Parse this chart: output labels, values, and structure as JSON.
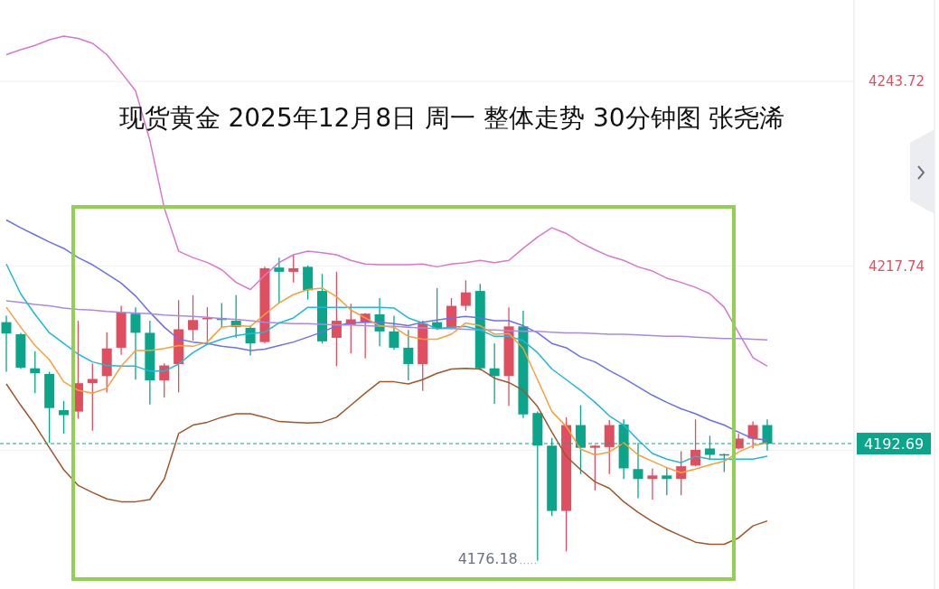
{
  "chart_data": {
    "type": "candlestick",
    "title": "现货黄金 2025年12月8日 周一 整体走势 30分钟图 张尧浠",
    "categories": [
      null,
      null,
      null,
      null,
      null,
      null,
      null,
      null,
      null,
      null,
      null,
      null,
      null,
      null,
      null,
      null,
      null,
      null,
      null,
      null,
      null,
      null,
      null,
      null,
      null,
      null,
      null,
      null,
      null,
      null,
      null,
      null,
      null,
      null,
      null,
      null,
      null,
      null,
      null,
      null,
      null,
      null,
      null,
      null,
      null,
      null,
      null,
      null,
      null,
      null,
      null,
      null,
      null,
      null
    ],
    "ohlc": [
      [
        4209.8,
        4210.7,
        4202.8,
        4208.2
      ],
      [
        4208.1,
        4208.3,
        4203.2,
        4203.4
      ],
      [
        4203.3,
        4205.7,
        4199.8,
        4202.6
      ],
      [
        4202.5,
        4202.8,
        4192.8,
        4197.7
      ],
      [
        4197.4,
        4198.7,
        4194.1,
        4196.7
      ],
      [
        4197.2,
        4210.0,
        4196.2,
        4201.2
      ],
      [
        4201.2,
        4204.0,
        4194.5,
        4201.8
      ],
      [
        4202.2,
        4208.4,
        4199.9,
        4206.1
      ],
      [
        4206.2,
        4212.1,
        4205.2,
        4211.2
      ],
      [
        4211.0,
        4211.9,
        4201.7,
        4208.3
      ],
      [
        4208.3,
        4210.0,
        4198.2,
        4201.6
      ],
      [
        4201.6,
        4204.0,
        4199.2,
        4203.7
      ],
      [
        4203.9,
        4212.9,
        4199.9,
        4208.8
      ],
      [
        4208.7,
        4213.6,
        4207.2,
        4210.1
      ],
      [
        4210.3,
        4211.9,
        4206.8,
        4210.4
      ],
      [
        4210.4,
        4212.5,
        4209.1,
        4210.1
      ],
      [
        4210.0,
        4213.6,
        4207.6,
        4209.1
      ],
      [
        4209.0,
        4209.3,
        4205.1,
        4206.8
      ],
      [
        4207.0,
        4217.6,
        4206.8,
        4217.4
      ],
      [
        4217.5,
        4218.9,
        4212.5,
        4216.9
      ],
      [
        4216.9,
        4219.3,
        4215.4,
        4217.4
      ],
      [
        4217.6,
        4217.8,
        4213.0,
        4214.3
      ],
      [
        4214.2,
        4216.6,
        4206.8,
        4207.1
      ],
      [
        4207.6,
        4216.9,
        4203.6,
        4210.0
      ],
      [
        4209.4,
        4212.4,
        4205.4,
        4210.2
      ],
      [
        4209.8,
        4211.1,
        4204.7,
        4211.0
      ],
      [
        4210.9,
        4213.2,
        4206.4,
        4208.5
      ],
      [
        4208.5,
        4210.7,
        4205.9,
        4206.2
      ],
      [
        4206.2,
        4208.7,
        4201.6,
        4203.9
      ],
      [
        4203.9,
        4210.0,
        4200.1,
        4209.6
      ],
      [
        4209.8,
        4214.6,
        4208.7,
        4208.9
      ],
      [
        4208.9,
        4213.2,
        4208.8,
        4212.1
      ],
      [
        4212.1,
        4215.7,
        4211.4,
        4214.0
      ],
      [
        4214.2,
        4215.2,
        4203.0,
        4203.3
      ],
      [
        4203.3,
        4206.8,
        4198.3,
        4202.2
      ],
      [
        4202.2,
        4211.9,
        4198.0,
        4209.2
      ],
      [
        4209.2,
        4211.4,
        4196.3,
        4196.8
      ],
      [
        4197.0,
        4197.2,
        4176.18,
        4192.4
      ],
      [
        4192.4,
        4193.5,
        4182.5,
        4183.2
      ],
      [
        4183.2,
        4196.4,
        4177.5,
        4195.3
      ],
      [
        4195.3,
        4198.1,
        4188.4,
        4192.1
      ],
      [
        4192.1,
        4192.5,
        4186.1,
        4192.4
      ],
      [
        4192.2,
        4196.0,
        4188.4,
        4195.3
      ],
      [
        4195.4,
        4196.1,
        4187.7,
        4189.2
      ],
      [
        4189.1,
        4192.8,
        4185.0,
        4187.7
      ],
      [
        4187.7,
        4189.2,
        4184.8,
        4188.2
      ],
      [
        4188.2,
        4189.3,
        4185.4,
        4187.7
      ],
      [
        4187.7,
        4191.6,
        4185.4,
        4189.5
      ],
      [
        4189.6,
        4196.1,
        4189.5,
        4191.8
      ],
      [
        4192.0,
        4193.8,
        4190.5,
        4191.1
      ],
      [
        4191.2,
        4191.3,
        4188.7,
        4191.0
      ],
      [
        4192.0,
        4194.1,
        4191.9,
        4193.4
      ],
      [
        4193.4,
        4195.8,
        4192.0,
        4195.3
      ],
      [
        4195.3,
        4196.1,
        4191.7,
        4192.69
      ]
    ],
    "colors": [
      "#0aa58a",
      "#0aa58a",
      "#0aa58a",
      "#0aa58a",
      "#0aa58a",
      "#e04f5f",
      "#e04f5f",
      "#e04f5f",
      "#e04f5f",
      "#0aa58a",
      "#0aa58a",
      "#e04f5f",
      "#e04f5f",
      "#e04f5f",
      "#e04f5f",
      "#0aa58a",
      "#0aa58a",
      "#0aa58a",
      "#e04f5f",
      "#0aa58a",
      "#e04f5f",
      "#0aa58a",
      "#0aa58a",
      "#e04f5f",
      "#e04f5f",
      "#e04f5f",
      "#0aa58a",
      "#0aa58a",
      "#0aa58a",
      "#e04f5f",
      "#0aa58a",
      "#e04f5f",
      "#e04f5f",
      "#0aa58a",
      "#0aa58a",
      "#e04f5f",
      "#0aa58a",
      "#0aa58a",
      "#0aa58a",
      "#e04f5f",
      "#0aa58a",
      "#e04f5f",
      "#e04f5f",
      "#0aa58a",
      "#0aa58a",
      "#e04f5f",
      "#0aa58a",
      "#e04f5f",
      "#e04f5f",
      "#0aa58a",
      "#0aa58a",
      "#e04f5f",
      "#e04f5f",
      "#0aa58a"
    ],
    "series": [
      {
        "type": "line",
        "color": "#d878cc",
        "values": [
          4247.5,
          4248.2,
          4248.8,
          4249.6,
          4250.1,
          4249.8,
          4249.1,
          4247.5,
          4245.0,
          4242.4,
          4235.4,
          4225.9,
          4219.8,
          4218.9,
          4218.2,
          4217.2,
          4215.4,
          4214.4,
          4216.4,
          4218.2,
          4219.3,
          4219.8,
          4219.6,
          4219.3,
          4218.5,
          4218.0,
          4217.9,
          4217.9,
          4217.9,
          4218.0,
          4217.6,
          4218.0,
          4218.2,
          4218.5,
          4218.2,
          4218.5,
          4220.2,
          4221.8,
          4223.1,
          4222.3,
          4221.0,
          4220.0,
          4219.1,
          4218.5,
          4217.6,
          4217.0,
          4216.0,
          4215.4,
          4214.7,
          4213.8,
          4211.9,
          4208.3,
          4204.8,
          4203.6
        ]
      },
      {
        "type": "line",
        "color": "#6b6ff0",
        "values": [
          4224.2,
          4223.1,
          4222.1,
          4221.1,
          4220.2,
          4218.9,
          4217.9,
          4216.6,
          4215.3,
          4213.5,
          4211.2,
          4209.1,
          4207.4,
          4207.0,
          4206.8,
          4206.4,
          4206.2,
          4205.8,
          4206.0,
          4206.5,
          4207.0,
          4207.7,
          4208.4,
          4209.3,
          4209.7,
          4209.8,
          4209.8,
          4209.6,
          4209.3,
          4209.8,
          4210.1,
          4210.4,
          4210.6,
          4210.4,
          4210.0,
          4210.0,
          4209.3,
          4208.3,
          4206.8,
          4206.2,
          4204.9,
          4204.2,
          4203.0,
          4201.9,
          4200.7,
          4199.5,
          4198.5,
          4197.6,
          4196.9,
          4196.0,
          4195.3,
          4194.3,
          4193.4,
          4193.2
        ]
      },
      {
        "type": "line",
        "color": "#a0562e",
        "values": [
          4201.1,
          4198.1,
          4195.3,
          4192.1,
          4189.0,
          4186.8,
          4185.8,
          4184.9,
          4184.5,
          4184.5,
          4184.8,
          4187.7,
          4194.1,
          4195.3,
          4195.7,
          4196.4,
          4196.9,
          4196.9,
          4196.4,
          4195.8,
          4195.7,
          4195.6,
          4195.7,
          4196.4,
          4198.1,
          4199.8,
          4201.4,
          4201.4,
          4201.1,
          4201.7,
          4202.6,
          4203.2,
          4203.3,
          4203.2,
          4201.9,
          4201.3,
          4200.2,
          4197.9,
          4194.3,
          4190.9,
          4189.0,
          4187.3,
          4186.4,
          4184.5,
          4183.0,
          4181.7,
          4180.6,
          4179.7,
          4178.8,
          4178.5,
          4178.5,
          4179.4,
          4181.1,
          4181.8
        ]
      },
      {
        "type": "line",
        "color": "#a98ae6",
        "values": [
          4212.8,
          4212.6,
          4212.3,
          4212.1,
          4211.8,
          4211.6,
          4211.5,
          4211.3,
          4211.2,
          4211.1,
          4211.0,
          4210.8,
          4210.7,
          4210.6,
          4210.5,
          4210.3,
          4210.2,
          4210.0,
          4209.8,
          4209.7,
          4209.6,
          4209.6,
          4209.5,
          4209.4,
          4209.4,
          4209.3,
          4209.2,
          4209.2,
          4209.1,
          4209.0,
          4208.9,
          4208.9,
          4208.8,
          4208.7,
          4208.7,
          4208.6,
          4208.5,
          4208.5,
          4208.4,
          4208.3,
          4208.3,
          4208.2,
          4208.1,
          4208.1,
          4208.0,
          4207.9,
          4207.8,
          4207.8,
          4207.7,
          4207.6,
          4207.5,
          4207.5,
          4207.4,
          4207.3
        ]
      },
      {
        "type": "line",
        "color": "#20b8d8",
        "values": [
          4218.0,
          4213.8,
          4210.9,
          4208.3,
          4206.8,
          4205.3,
          4204.2,
          4203.7,
          4203.6,
          4203.6,
          4202.9,
          4202.9,
          4203.9,
          4205.5,
          4206.7,
          4207.4,
          4207.9,
          4208.2,
          4208.4,
          4209.7,
          4210.4,
          4211.9,
          4211.9,
          4211.9,
          4211.9,
          4211.9,
          4211.9,
          4211.8,
          4210.4,
          4209.7,
          4208.9,
          4209.1,
          4209.2,
          4208.7,
          4207.8,
          4207.8,
          4207.2,
          4205.5,
          4203.2,
          4201.7,
          4200.2,
          4198.5,
          4196.6,
          4195.3,
          4193.2,
          4191.3,
          4190.5,
          4190.0,
          4190.9,
          4190.5,
          4190.5,
          4190.5,
          4190.5,
          4190.9
        ]
      },
      {
        "type": "line",
        "color": "#f7a03c",
        "values": [
          4211.9,
          4209.1,
          4206.5,
          4204.5,
          4201.4,
          4200.2,
          4199.8,
          4200.5,
          4203.6,
          4205.8,
          4205.8,
          4206.1,
          4206.5,
          4206.4,
          4207.0,
          4209.1,
          4209.3,
          4209.2,
          4210.9,
          4212.5,
          4213.7,
          4214.4,
          4214.6,
          4213.4,
          4211.5,
          4210.4,
          4209.3,
          4209.1,
          4207.8,
          4207.4,
          4207.4,
          4208.1,
          4209.7,
          4209.3,
          4208.1,
          4208.2,
          4206.1,
          4201.7,
          4197.2,
          4195.1,
          4191.9,
          4191.1,
          4191.5,
          4192.8,
          4191.1,
          4190.2,
          4189.3,
          4188.6,
          4189.1,
          4189.7,
          4190.2,
          4191.5,
          4192.4,
          4192.8
        ]
      }
    ],
    "ylim": [
      4172.2,
      4255.2
    ],
    "yticks": [
      4243.72,
      4217.74,
      {
        "value": 4191.77,
        "label": null
      }
    ],
    "grid": "y",
    "tick_labels": "y",
    "ref_lines": [
      {
        "axis": "y",
        "value": 4192.69,
        "label": "4192.69",
        "color": "#0aa58a",
        "line_style": "dashed"
      }
    ],
    "annotations": [
      "4176.18"
    ]
  }
}
